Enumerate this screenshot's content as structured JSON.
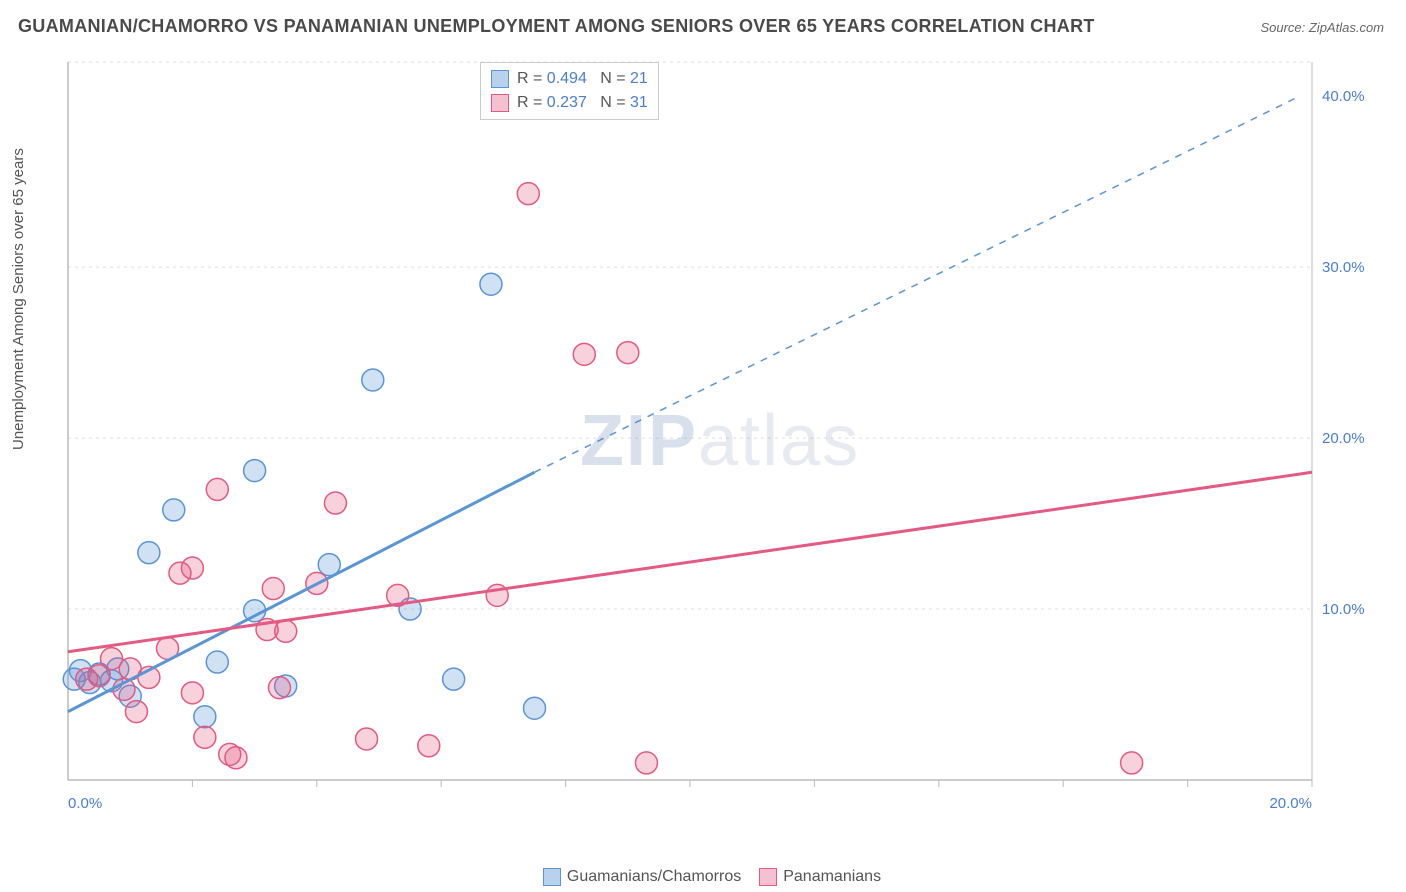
{
  "title": "GUAMANIAN/CHAMORRO VS PANAMANIAN UNEMPLOYMENT AMONG SENIORS OVER 65 YEARS CORRELATION CHART",
  "source": "Source: ZipAtlas.com",
  "ylabel": "Unemployment Among Seniors over 65 years",
  "watermark_bold": "ZIP",
  "watermark_rest": "atlas",
  "chart": {
    "type": "scatter",
    "xlim": [
      0,
      20
    ],
    "ylim": [
      0,
      42
    ],
    "x_tick_major": [
      0,
      20
    ],
    "x_tick_minor_step": 2,
    "y_tick_major": [
      10,
      20,
      30,
      40
    ],
    "y_gridlines": [
      10,
      20,
      30,
      42
    ],
    "x_tick_labels": {
      "0": "0.0%",
      "20": "20.0%"
    },
    "y_tick_labels": {
      "10": "10.0%",
      "20": "20.0%",
      "30": "30.0%",
      "40": "40.0%"
    },
    "axis_label_color": "#4b7ecb",
    "grid_color": "#dddddd",
    "axis_color": "#bbbbbb",
    "tick_fontsize": 15,
    "marker_radius": 11,
    "marker_stroke_width": 1.5,
    "marker_fill_opacity": 0.28,
    "line_width": 3,
    "series": [
      {
        "name": "Guamanians/Chamorros",
        "color": "#5a95d6",
        "legend_fill": "#b8d2ee",
        "R": "0.494",
        "N": "21",
        "points": [
          [
            0.1,
            5.9
          ],
          [
            0.2,
            6.4
          ],
          [
            0.35,
            5.7
          ],
          [
            0.5,
            6.2
          ],
          [
            0.7,
            5.8
          ],
          [
            0.8,
            6.5
          ],
          [
            1.0,
            4.9
          ],
          [
            1.3,
            13.3
          ],
          [
            1.7,
            15.8
          ],
          [
            2.2,
            3.7
          ],
          [
            2.4,
            6.9
          ],
          [
            3.0,
            18.1
          ],
          [
            3.0,
            9.9
          ],
          [
            3.5,
            5.5
          ],
          [
            4.2,
            12.6
          ],
          [
            4.9,
            23.4
          ],
          [
            5.5,
            10.0
          ],
          [
            6.8,
            29.0
          ],
          [
            6.2,
            5.9
          ],
          [
            7.5,
            4.2
          ]
        ],
        "regression": {
          "start": [
            0,
            4.0
          ],
          "solid_end": [
            7.5,
            18.0
          ],
          "dash_end": [
            19.8,
            40.0
          ]
        }
      },
      {
        "name": "Panamanians",
        "color": "#e35a83",
        "legend_fill": "#f4c1d0",
        "R": "0.237",
        "N": "31",
        "points": [
          [
            0.3,
            5.9
          ],
          [
            0.5,
            6.1
          ],
          [
            0.7,
            7.1
          ],
          [
            0.9,
            5.3
          ],
          [
            1.0,
            6.5
          ],
          [
            1.1,
            4.0
          ],
          [
            1.3,
            6.0
          ],
          [
            1.6,
            7.7
          ],
          [
            1.8,
            12.1
          ],
          [
            2.0,
            5.1
          ],
          [
            2.0,
            12.4
          ],
          [
            2.2,
            2.5
          ],
          [
            2.4,
            17.0
          ],
          [
            2.7,
            1.3
          ],
          [
            2.6,
            1.5
          ],
          [
            3.2,
            8.8
          ],
          [
            3.3,
            11.2
          ],
          [
            3.4,
            5.4
          ],
          [
            3.5,
            8.7
          ],
          [
            4.0,
            11.5
          ],
          [
            4.3,
            16.2
          ],
          [
            4.8,
            2.4
          ],
          [
            5.3,
            10.8
          ],
          [
            5.8,
            2.0
          ],
          [
            6.9,
            10.8
          ],
          [
            7.4,
            34.3
          ],
          [
            8.3,
            24.9
          ],
          [
            9.0,
            25.0
          ],
          [
            9.3,
            1.0
          ],
          [
            17.1,
            1.0
          ]
        ],
        "regression": {
          "start": [
            0,
            7.5
          ],
          "solid_end": [
            20,
            18.0
          ]
        }
      }
    ]
  },
  "top_legend_labels": {
    "R": "R =",
    "N": "N ="
  },
  "bottom_legend": {
    "items": [
      {
        "swatch_fill": "#b8d2ee",
        "swatch_border": "#5a95d6",
        "label": "Guamanians/Chamorros"
      },
      {
        "swatch_fill": "#f4c1d0",
        "swatch_border": "#e35a83",
        "label": "Panamanians"
      }
    ]
  }
}
